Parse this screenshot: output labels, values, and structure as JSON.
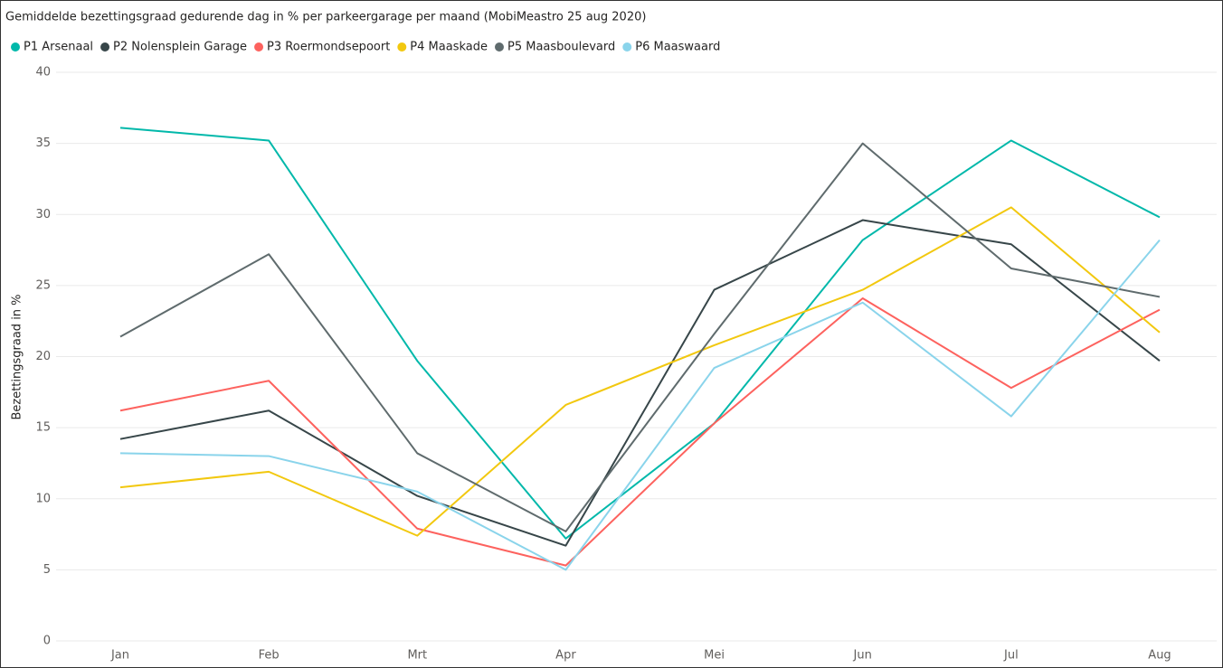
{
  "chart_data": {
    "type": "line",
    "title": "Gemiddelde bezettingsgraad gedurende dag in % per parkeergarage per maand (MobiMeastro 25 aug 2020)",
    "y_label": "Bezettingsgraad in %",
    "categories": [
      "Jan",
      "Feb",
      "Mrt",
      "Apr",
      "Mei",
      "Jun",
      "Jul",
      "Aug"
    ],
    "series": [
      {
        "name": "P1 Arsenaal",
        "color": "#01b8aa",
        "values": [
          36.1,
          35.2,
          19.7,
          7.2,
          15.3,
          28.2,
          35.2,
          29.8
        ]
      },
      {
        "name": "P2 Nolensplein Garage",
        "color": "#374649",
        "values": [
          14.2,
          16.2,
          10.2,
          6.7,
          24.7,
          29.6,
          27.9,
          19.7
        ]
      },
      {
        "name": "P3 Roermondsepoort",
        "color": "#fd625e",
        "values": [
          16.2,
          18.3,
          7.9,
          5.3,
          15.3,
          24.1,
          17.8,
          23.3
        ]
      },
      {
        "name": "P4 Maaskade",
        "color": "#f2c80f",
        "values": [
          10.8,
          11.9,
          7.4,
          16.6,
          20.8,
          24.7,
          30.5,
          21.7
        ]
      },
      {
        "name": "P5 Maasboulevard",
        "color": "#5f6b6d",
        "values": [
          21.4,
          27.2,
          13.2,
          7.7,
          21.6,
          35.0,
          26.2,
          24.2
        ]
      },
      {
        "name": "P6 Maaswaard",
        "color": "#8ad4eb",
        "values": [
          13.2,
          13.0,
          10.5,
          5.0,
          19.2,
          23.8,
          15.8,
          28.2
        ]
      }
    ],
    "ylim": [
      0,
      40
    ],
    "yticks": [
      0,
      5,
      10,
      15,
      20,
      25,
      30,
      35,
      40
    ],
    "grid": true,
    "legend": "top-left"
  }
}
